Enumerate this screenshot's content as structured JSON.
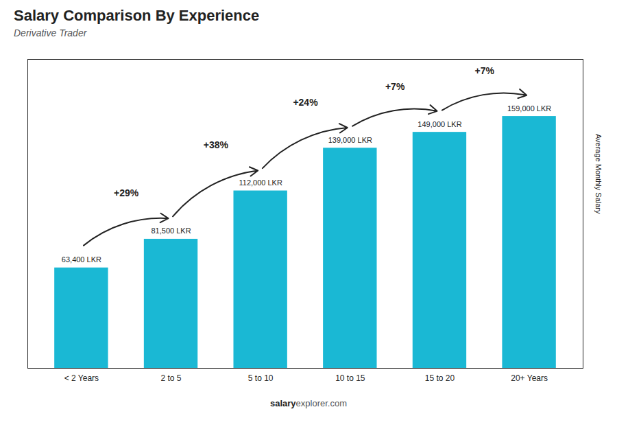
{
  "chart_data": {
    "type": "bar",
    "title": "Salary Comparison By Experience",
    "subtitle": "Derivative Trader",
    "ylabel": "Average Monthly Salary",
    "categories": [
      "< 2 Years",
      "2 to 5",
      "5 to 10",
      "10 to 15",
      "15 to 20",
      "20+ Years"
    ],
    "values": [
      63400,
      81500,
      112000,
      139000,
      149000,
      159000
    ],
    "value_labels": [
      "63,400 LKR",
      "81,500 LKR",
      "112,000 LKR",
      "139,000 LKR",
      "149,000 LKR",
      "159,000 LKR"
    ],
    "data_labels": true,
    "color": "#1ab8d4",
    "ylim": [
      0,
      195000
    ],
    "tick_labels": "x",
    "grid": false,
    "annotations": [
      "+29%",
      "+38%",
      "+24%",
      "+7%",
      "+7%"
    ],
    "footer": [
      "salary",
      "explorer.com"
    ]
  }
}
